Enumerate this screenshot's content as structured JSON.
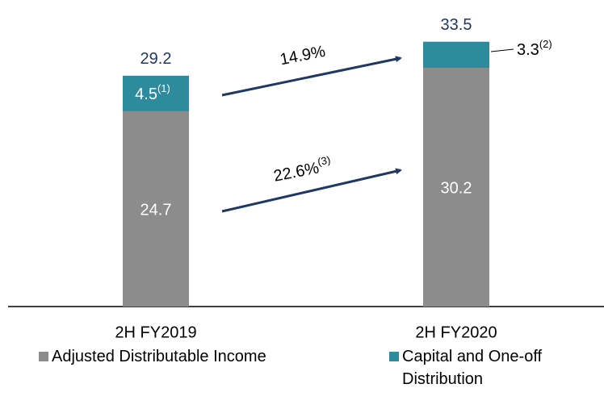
{
  "chart_data": {
    "type": "stacked_bar",
    "categories": [
      "2H FY2019",
      "2H FY2020"
    ],
    "series": [
      {
        "name": "Adjusted Distributable Income",
        "color": "#8c8c8c",
        "values": [
          24.7,
          30.2
        ]
      },
      {
        "name": "Capital and One-off Distribution",
        "color": "#2e8b9e",
        "values": [
          4.5,
          3.3
        ],
        "value_label_notes": [
          "(1)",
          "(2)"
        ]
      }
    ],
    "totals": [
      29.2,
      33.5
    ],
    "annotations": [
      {
        "text": "14.9%"
      },
      {
        "text": "22.6%",
        "note": "(3)"
      }
    ],
    "ylim": [
      0,
      38
    ]
  }
}
